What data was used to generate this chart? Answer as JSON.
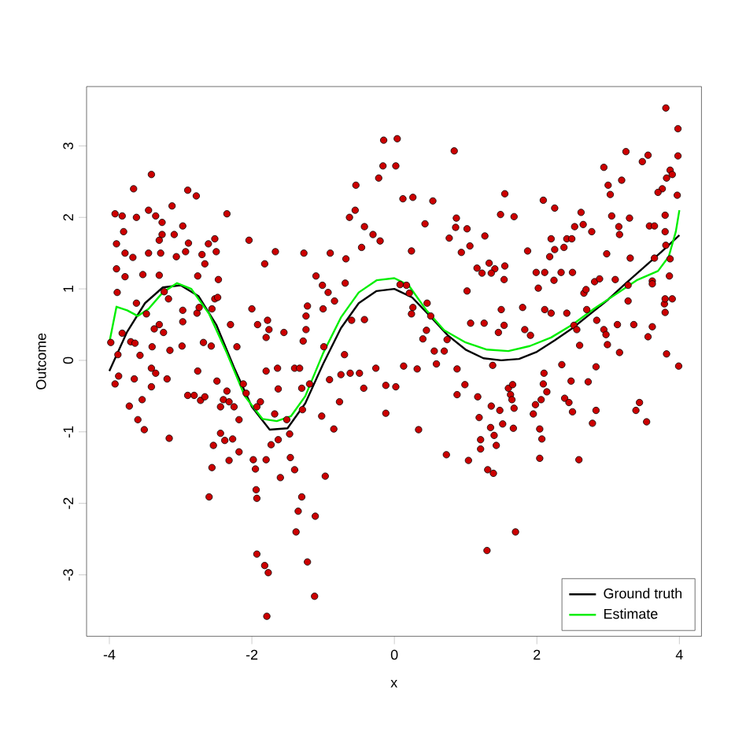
{
  "chart_data": {
    "type": "scatter",
    "xlabel": "x",
    "ylabel": "Outcome",
    "xlim": [
      -4.32,
      4.31
    ],
    "ylim": [
      -3.86,
      3.83
    ],
    "xticks": [
      -4,
      -2,
      0,
      2,
      4
    ],
    "yticks": [
      -3,
      -2,
      -1,
      0,
      1,
      2,
      3
    ],
    "legend": "bottom right",
    "series": [
      {
        "color": "#cc0000",
        "marker": "circle",
        "x": [
          -3.41,
          -3.66,
          -2.9,
          -2.78,
          -3.92,
          -3.82,
          -3.62,
          -3.45,
          -3.35,
          -3.12,
          -2.35,
          -2.97,
          -3.26,
          -3.8,
          -3.26,
          -3.09,
          -3.9,
          -3.3,
          -2.89,
          -2.61,
          -2.52,
          -2.04,
          -3.78,
          -3.67,
          -3.45,
          -3.28,
          -3.06,
          -2.93,
          -2.7,
          -2.5,
          -1.67,
          -1.82,
          -3.9,
          -3.53,
          -3.3,
          -3.78,
          -2.66,
          -2.76,
          -2.47,
          -1.27,
          -0.9,
          -1.1,
          -1.01,
          -0.68,
          -0.54,
          -0.55,
          -0.63,
          -0.42,
          -0.22,
          -0.16,
          -0.15,
          -0.3,
          -0.46,
          -0.2,
          -0.69,
          -0.93,
          -0.84,
          -1.22,
          -1.24,
          -1.0,
          -0.6,
          -0.42,
          -3.89,
          -3.62,
          -3.48,
          -3.3,
          -3.37,
          -3.24,
          -3.23,
          -3.17,
          -2.97,
          -2.97,
          -2.77,
          -2.74,
          -2.56,
          -2.52,
          -2.48,
          -2.3,
          -2.0,
          -1.92,
          -1.78,
          -1.76,
          -1.55,
          -1.8,
          -1.24,
          -1.28,
          -3.82,
          -3.7,
          -3.64,
          -3.4,
          -3.57,
          -3.88,
          -3.15,
          -2.98,
          -2.68,
          -2.57,
          -2.21,
          -0.7,
          -0.99,
          -3.98,
          3.81,
          3.98,
          0.84,
          0.04,
          0.02,
          3.25,
          3.56,
          3.48,
          3.98,
          2.94,
          3.19,
          3.87,
          3.9,
          3.82,
          3.0,
          3.03,
          3.76,
          3.7,
          3.97,
          0.12,
          0.26,
          0.54,
          1.55,
          2.09,
          2.25,
          2.62,
          1.49,
          1.68,
          3.05,
          3.3,
          3.58,
          3.65,
          3.8,
          0.87,
          0.43,
          0.86,
          1.02,
          0.77,
          1.06,
          0.94,
          1.27,
          2.53,
          2.65,
          2.77,
          3.15,
          3.16,
          2.2,
          2.42,
          2.49,
          1.87,
          2.18,
          2.25,
          2.38,
          0.24,
          3.8,
          3.81,
          2.98,
          3.31,
          3.65,
          3.87,
          1.33,
          1.16,
          1.41,
          1.55,
          1.23,
          1.36,
          1.54,
          1.02,
          1.8,
          1.99,
          2.11,
          2.02,
          2.34,
          2.5,
          2.24,
          2.66,
          2.81,
          2.88,
          3.1,
          3.28,
          3.62,
          3.62,
          3.86,
          0.08,
          0.17,
          0.21,
          0.46,
          0.51,
          0.26,
          0.24,
          0.45,
          0.4,
          0.74,
          0.56,
          0.7,
          1.07,
          1.26,
          1.46,
          1.5,
          1.54,
          1.83,
          1.91,
          2.11,
          2.2,
          2.42,
          2.52,
          2.56,
          2.6,
          2.7,
          2.84,
          2.94,
          2.97,
          2.99,
          3.16,
          3.13,
          3.28,
          3.36,
          3.62,
          3.56,
          3.79,
          3.8,
          3.9,
          3.8,
          3.82,
          2.69,
          -3.92,
          -3.87,
          -3.65,
          -3.41,
          -3.35,
          -3.41,
          -3.19,
          -3.72,
          -3.54,
          -3.6,
          -3.51,
          -3.16,
          -2.76,
          -2.49,
          -2.9,
          -2.81,
          -2.72,
          -2.66,
          -2.44,
          -2.4,
          -2.35,
          -2.32,
          -2.25,
          -2.12,
          -2.08,
          -1.88,
          -1.93,
          -2.18,
          -2.44,
          -2.38,
          -2.27,
          -2.54,
          -2.32,
          -2.18,
          -2.56,
          -1.98,
          -1.95,
          -1.8,
          -1.73,
          -1.63,
          -1.47,
          -1.46,
          -1.4,
          -1.6,
          -2.6,
          -1.94,
          -1.93,
          -1.3,
          -1.35,
          -1.11,
          -1.38,
          -0.97,
          -0.85,
          -1.02,
          -0.77,
          -1.93,
          -1.82,
          -1.77,
          -1.22,
          -1.12,
          -1.79,
          -1.8,
          -1.64,
          -1.4,
          -1.33,
          -1.3,
          -1.19,
          -1.63,
          -0.91,
          -0.75,
          -0.62,
          -0.49,
          -0.43,
          -0.26,
          -0.12,
          -0.12,
          -1.68,
          -1.51,
          -1.29,
          0.02,
          0.32,
          0.13,
          0.88,
          0.99,
          0.88,
          1.17,
          1.19,
          1.36,
          1.48,
          1.35,
          1.4,
          1.21,
          1.21,
          1.43,
          1.52,
          1.67,
          1.6,
          1.66,
          1.63,
          1.65,
          1.68,
          0.73,
          1.04,
          0.34,
          1.31,
          1.39,
          2.04,
          2.07,
          2.04,
          1.95,
          1.98,
          2.06,
          2.14,
          2.09,
          2.1,
          2.39,
          2.45,
          2.5,
          2.48,
          2.35,
          2.72,
          2.83,
          2.78,
          2.59,
          1.7,
          1.3,
          3.39,
          3.44,
          3.54,
          2.83,
          3.99,
          0.59,
          1.38
        ],
        "values": [
          2.6,
          2.4,
          2.38,
          2.3,
          2.05,
          2.02,
          2.0,
          2.1,
          2.02,
          2.16,
          2.05,
          1.88,
          1.93,
          1.8,
          1.76,
          1.76,
          1.63,
          1.68,
          1.64,
          1.63,
          1.7,
          1.68,
          1.5,
          1.44,
          1.5,
          1.5,
          1.45,
          1.52,
          1.48,
          1.52,
          1.52,
          1.35,
          1.28,
          1.2,
          1.19,
          1.17,
          1.35,
          1.18,
          1.13,
          1.5,
          1.5,
          1.18,
          1.05,
          1.42,
          2.45,
          2.1,
          2.0,
          1.87,
          2.55,
          2.72,
          3.08,
          1.76,
          1.58,
          1.67,
          1.08,
          0.95,
          0.83,
          0.76,
          0.62,
          0.72,
          0.56,
          0.57,
          0.95,
          0.8,
          0.65,
          0.5,
          0.44,
          0.39,
          0.96,
          0.86,
          0.7,
          0.54,
          0.66,
          0.74,
          0.72,
          0.86,
          0.88,
          0.5,
          0.72,
          0.5,
          0.56,
          0.43,
          0.39,
          0.32,
          0.43,
          0.27,
          0.38,
          0.26,
          0.24,
          0.19,
          0.07,
          0.08,
          0.14,
          0.2,
          0.25,
          0.2,
          0.19,
          0.08,
          0.19,
          0.25,
          3.53,
          3.24,
          2.93,
          3.1,
          2.72,
          2.92,
          2.87,
          2.78,
          2.86,
          2.7,
          2.52,
          2.66,
          2.6,
          2.55,
          2.45,
          2.32,
          2.4,
          2.35,
          2.31,
          2.26,
          2.28,
          2.23,
          2.33,
          2.24,
          2.13,
          2.07,
          2.04,
          2.01,
          2.02,
          1.99,
          1.88,
          1.88,
          2.03,
          1.99,
          1.91,
          1.86,
          1.84,
          1.71,
          1.6,
          1.51,
          1.74,
          1.87,
          1.9,
          1.8,
          1.87,
          1.76,
          1.7,
          1.7,
          1.7,
          1.53,
          1.45,
          1.55,
          1.58,
          1.53,
          1.8,
          1.61,
          1.49,
          1.43,
          1.43,
          1.42,
          1.36,
          1.29,
          1.28,
          1.32,
          1.22,
          1.22,
          1.13,
          0.97,
          0.74,
          1.23,
          1.23,
          1.01,
          1.23,
          1.23,
          1.12,
          0.94,
          1.1,
          1.14,
          1.13,
          1.05,
          1.11,
          1.07,
          1.18,
          1.06,
          1.05,
          0.94,
          0.8,
          0.62,
          0.74,
          0.65,
          0.42,
          0.3,
          0.29,
          0.13,
          0.13,
          0.52,
          0.52,
          0.39,
          0.71,
          0.49,
          0.43,
          0.35,
          0.71,
          0.66,
          0.66,
          0.49,
          0.43,
          0.21,
          0.71,
          0.56,
          0.43,
          0.36,
          0.22,
          0.11,
          0.5,
          0.83,
          0.5,
          0.47,
          0.33,
          0.79,
          0.86,
          0.86,
          0.67,
          0.09,
          0.99,
          -0.33,
          -0.22,
          -0.26,
          -0.11,
          -0.18,
          -0.37,
          -0.26,
          -0.64,
          -0.55,
          -0.83,
          -0.97,
          -1.09,
          -0.15,
          -0.29,
          -0.49,
          -0.49,
          -0.56,
          -0.51,
          -0.65,
          -0.55,
          -0.43,
          -0.58,
          -0.65,
          -0.33,
          -0.46,
          -0.58,
          -0.65,
          -0.83,
          -1.02,
          -1.12,
          -1.1,
          -1.19,
          -1.4,
          -1.28,
          -1.5,
          -1.39,
          -1.52,
          -1.39,
          -1.18,
          -1.11,
          -1.03,
          -1.36,
          -1.53,
          -1.64,
          -1.91,
          -1.81,
          -1.93,
          -1.91,
          -2.11,
          -2.18,
          -2.4,
          -1.62,
          -0.96,
          -0.78,
          -0.58,
          -2.71,
          -2.87,
          -2.97,
          -2.82,
          -3.3,
          -3.58,
          -0.15,
          -0.11,
          -0.11,
          -0.11,
          -0.39,
          -0.33,
          -0.4,
          -0.27,
          -0.2,
          -0.18,
          -0.18,
          -0.39,
          -0.11,
          -0.35,
          -0.74,
          -0.75,
          -0.83,
          -0.69,
          -0.37,
          -0.12,
          -0.08,
          -0.12,
          -0.34,
          -0.48,
          -0.51,
          -0.8,
          -0.64,
          -0.7,
          -0.94,
          -1.05,
          -1.11,
          -1.24,
          -1.19,
          -0.89,
          -0.95,
          -0.39,
          -0.34,
          -0.48,
          -0.55,
          -0.67,
          -1.32,
          -1.4,
          -0.97,
          -1.53,
          -1.58,
          -1.37,
          -1.1,
          -0.96,
          -0.75,
          -0.62,
          -0.55,
          -0.44,
          -0.33,
          -0.18,
          -0.53,
          -0.59,
          -0.72,
          -0.29,
          -0.06,
          -0.3,
          -0.7,
          -0.88,
          -1.39,
          -2.4,
          -2.66,
          -0.7,
          -0.59,
          -0.86,
          -0.09,
          -0.08,
          -0.05,
          -0.07
        ]
      },
      {
        "type": "line",
        "name": "Ground truth",
        "color": "#000000",
        "marker": "none",
        "line_style": "solid",
        "x": [
          -4,
          -3.75,
          -3.5,
          -3.25,
          -3.0,
          -2.75,
          -2.5,
          -2.25,
          -2.0,
          -1.75,
          -1.5,
          -1.25,
          -1.0,
          -0.75,
          -0.5,
          -0.25,
          0,
          0.25,
          0.5,
          0.75,
          1.0,
          1.25,
          1.5,
          1.75,
          2.0,
          2.25,
          2.5,
          2.75,
          3.0,
          3.25,
          3.5,
          3.75,
          4.0
        ],
        "values": [
          -0.15,
          0.4,
          0.8,
          1.02,
          1.05,
          0.9,
          0.5,
          -0.1,
          -0.65,
          -0.97,
          -0.95,
          -0.6,
          -0.05,
          0.45,
          0.8,
          0.97,
          1.0,
          0.88,
          0.62,
          0.35,
          0.15,
          0.03,
          0.0,
          0.02,
          0.12,
          0.28,
          0.45,
          0.65,
          0.85,
          1.08,
          1.3,
          1.52,
          1.75
        ]
      },
      {
        "type": "line",
        "name": "Estimate",
        "color": "#00ee00",
        "marker": "none",
        "line_style": "solid",
        "x": [
          -4,
          -3.9,
          -3.75,
          -3.6,
          -3.45,
          -3.25,
          -3.05,
          -2.85,
          -2.6,
          -2.35,
          -2.1,
          -1.85,
          -1.65,
          -1.45,
          -1.25,
          -1.0,
          -0.75,
          -0.5,
          -0.25,
          0,
          0.2,
          0.45,
          0.7,
          1.0,
          1.3,
          1.6,
          1.9,
          2.2,
          2.5,
          2.8,
          3.1,
          3.4,
          3.7,
          3.85,
          3.95,
          4.0
        ],
        "values": [
          0.25,
          0.75,
          0.7,
          0.62,
          0.72,
          0.95,
          1.08,
          1.0,
          0.65,
          0.1,
          -0.5,
          -0.82,
          -0.85,
          -0.78,
          -0.5,
          0.1,
          0.6,
          0.95,
          1.12,
          1.15,
          1.05,
          0.7,
          0.42,
          0.25,
          0.15,
          0.13,
          0.2,
          0.32,
          0.5,
          0.72,
          0.92,
          1.12,
          1.25,
          1.45,
          1.8,
          2.1
        ]
      }
    ]
  }
}
